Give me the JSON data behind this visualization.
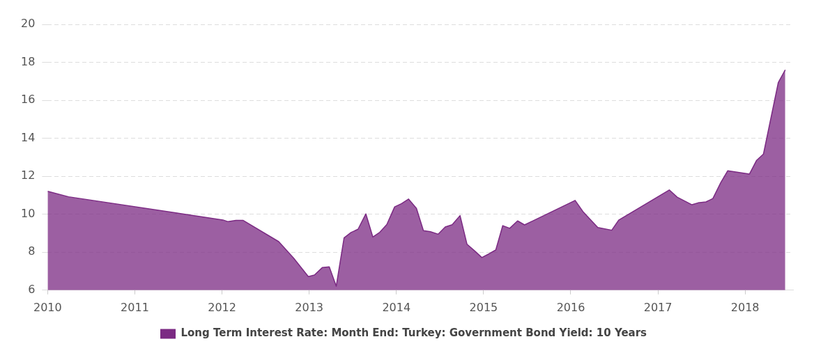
{
  "chart_data": {
    "type": "area",
    "xlim": [
      2010,
      2018.55
    ],
    "xticks": [
      2010,
      2011,
      2012,
      2013,
      2014,
      2015,
      2016,
      2017,
      2018
    ],
    "ylim": [
      6,
      20
    ],
    "yticks": [
      6,
      8,
      10,
      12,
      14,
      16,
      18,
      20
    ],
    "grid": "y",
    "legend": "bottom",
    "line_style": "solid",
    "marker": "none",
    "series": [
      {
        "name": "Long Term Interest Rate: Month End: Turkey: Government Bond Yield: 10 Years",
        "color": "#7b2a83",
        "x": [
          2010.0,
          2010.24,
          2012.01,
          2012.07,
          2012.16,
          2012.24,
          2012.65,
          2012.82,
          2012.99,
          2013.06,
          2013.15,
          2013.23,
          2013.31,
          2013.4,
          2013.48,
          2013.56,
          2013.65,
          2013.73,
          2013.81,
          2013.89,
          2013.98,
          2014.06,
          2014.14,
          2014.23,
          2014.31,
          2014.39,
          2014.48,
          2014.56,
          2014.64,
          2014.73,
          2014.81,
          2014.9,
          2014.98,
          2015.06,
          2015.14,
          2015.22,
          2015.3,
          2015.39,
          2015.47,
          2016.05,
          2016.14,
          2016.31,
          2016.47,
          2016.55,
          2017.13,
          2017.22,
          2017.39,
          2017.46,
          2017.55,
          2017.63,
          2017.72,
          2017.8,
          2018.05,
          2018.13,
          2018.21,
          2018.38,
          2018.46
        ],
        "values": [
          11.21,
          10.92,
          9.7,
          9.61,
          9.68,
          9.68,
          8.56,
          7.7,
          6.72,
          6.8,
          7.19,
          7.23,
          6.21,
          8.76,
          9.04,
          9.21,
          10.02,
          8.8,
          9.05,
          9.46,
          10.39,
          10.56,
          10.8,
          10.31,
          9.14,
          9.08,
          8.95,
          9.33,
          9.45,
          9.93,
          8.42,
          8.06,
          7.72,
          7.91,
          8.12,
          9.4,
          9.26,
          9.65,
          9.44,
          10.73,
          10.14,
          9.3,
          9.16,
          9.69,
          11.28,
          10.9,
          10.5,
          10.6,
          10.65,
          10.83,
          11.66,
          12.29,
          12.12,
          12.83,
          13.17,
          16.93,
          17.6
        ]
      }
    ]
  }
}
